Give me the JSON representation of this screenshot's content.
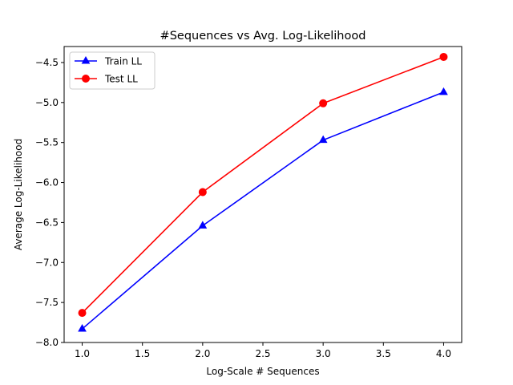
{
  "chart_data": {
    "type": "line",
    "title": "#Sequences vs Avg. Log-Likelihood",
    "xlabel": "Log-Scale # Sequences",
    "ylabel": "Average Log-Likelihood",
    "xlim": [
      0.85,
      4.15
    ],
    "ylim": [
      -8.0,
      -4.3
    ],
    "x_ticks": [
      1.0,
      1.5,
      2.0,
      2.5,
      3.0,
      3.5,
      4.0
    ],
    "x_tick_labels": [
      "1.0",
      "1.5",
      "2.0",
      "2.5",
      "3.0",
      "3.5",
      "4.0"
    ],
    "y_ticks": [
      -8.0,
      -7.5,
      -7.0,
      -6.5,
      -6.0,
      -5.5,
      -5.0,
      -4.5
    ],
    "y_tick_labels": [
      "−8.0",
      "−7.5",
      "−7.0",
      "−6.5",
      "−6.0",
      "−5.5",
      "−5.0",
      "−4.5"
    ],
    "grid": false,
    "legend_position": "top-left",
    "x": [
      1.0,
      2.0,
      3.0,
      4.0
    ],
    "series": [
      {
        "name": "Train LL",
        "values": [
          -7.83,
          -6.54,
          -5.47,
          -4.87
        ],
        "color": "#0000ff",
        "marker": "triangle"
      },
      {
        "name": "Test LL",
        "values": [
          -7.63,
          -6.12,
          -5.01,
          -4.43
        ],
        "color": "#ff0000",
        "marker": "circle"
      }
    ]
  }
}
